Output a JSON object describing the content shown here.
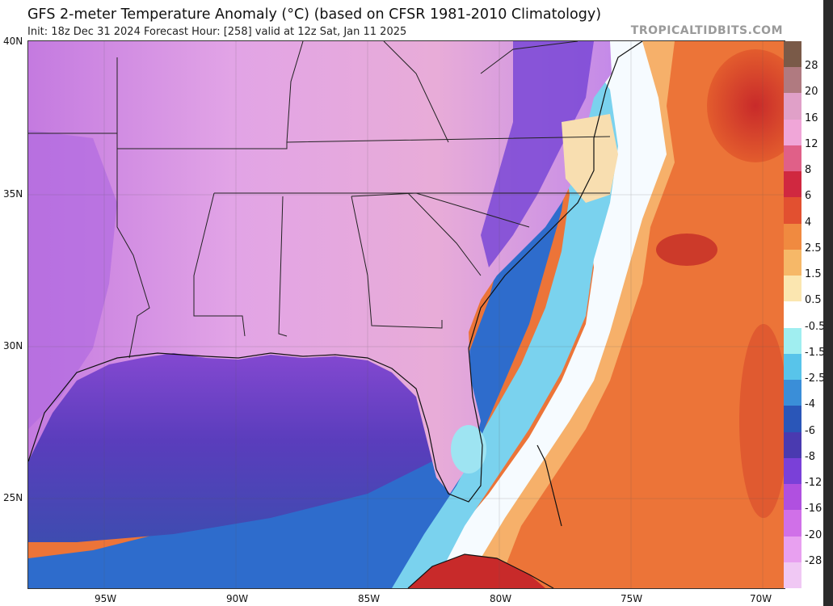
{
  "header": {
    "title": "GFS 2-meter Temperature Anomaly (°C) (based on CFSR 1981-2010 Climatology)",
    "subtitle": "Init: 18z Dec 31 2024   Forecast Hour: [258]   valid at 12z Sat, Jan 11 2025",
    "credit": "TROPICALTIDBITS.COM"
  },
  "axes": {
    "lat_labels": [
      "40N",
      "35N",
      "30N",
      "25N"
    ],
    "lon_labels": [
      "95W",
      "90W",
      "85W",
      "80W",
      "75W",
      "70W"
    ]
  },
  "colorbar": {
    "labels": [
      "28",
      "20",
      "16",
      "12",
      "8",
      "6",
      "4",
      "2.5",
      "1.5",
      "0.5",
      "-0.5",
      "-1.5",
      "-2.5",
      "-4",
      "-6",
      "-8",
      "-12",
      "-16",
      "-20",
      "-28"
    ],
    "colors": [
      "#7a5a48",
      "#b07a80",
      "#e0a0c8",
      "#f0a6d8",
      "#e06088",
      "#d02840",
      "#e25030",
      "#f08a40",
      "#f6b868",
      "#fbe6b0",
      "#ffffff",
      "#a0eef0",
      "#58c4ea",
      "#3a8ed8",
      "#2a56b8",
      "#4a3ab0",
      "#7a40d8",
      "#b050e0",
      "#d070e8",
      "#e8a0f0",
      "#f0c8f4"
    ]
  },
  "colors": {
    "land_cold": "#d68ee6",
    "land_pink": "#e8a8e6",
    "gulf_deep": "#4a3fae",
    "ocean_blue": "#2a6cc8",
    "ocean_white": "#f4fbff",
    "ocean_warm": "#ef7a3c",
    "ocean_hot": "#cc2a2a"
  }
}
